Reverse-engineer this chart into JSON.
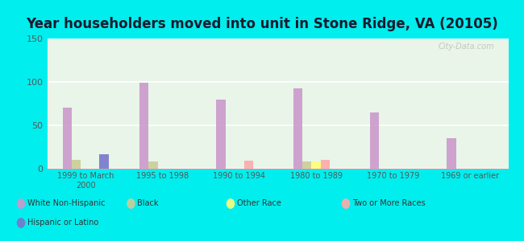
{
  "title": "Year householders moved into unit in Stone Ridge, VA (20105)",
  "categories": [
    "1999 to March\n2000",
    "1995 to 1998",
    "1990 to 1994",
    "1980 to 1989",
    "1970 to 1979",
    "1969 or earlier"
  ],
  "series": {
    "White Non-Hispanic": [
      70,
      99,
      80,
      93,
      65,
      35
    ],
    "Black": [
      10,
      8,
      0,
      8,
      0,
      0
    ],
    "Other Race": [
      0,
      0,
      0,
      8,
      0,
      0
    ],
    "Two or More Races": [
      0,
      0,
      9,
      10,
      0,
      0
    ],
    "Hispanic or Latino": [
      17,
      0,
      0,
      0,
      0,
      0
    ]
  },
  "colors": {
    "White Non-Hispanic": "#cc99cc",
    "Black": "#cccc99",
    "Other Race": "#ffff77",
    "Two or More Races": "#ffaaaa",
    "Hispanic or Latino": "#7777cc"
  },
  "ylim": [
    0,
    150
  ],
  "yticks": [
    0,
    50,
    100,
    150
  ],
  "background_color": "#00eeee",
  "watermark": "City-Data.com",
  "bar_width": 0.12,
  "title_fontsize": 12,
  "legend_row1": [
    "White Non-Hispanic",
    "Black",
    "Other Race",
    "Two or More Races"
  ],
  "legend_row2": [
    "Hispanic or Latino"
  ]
}
